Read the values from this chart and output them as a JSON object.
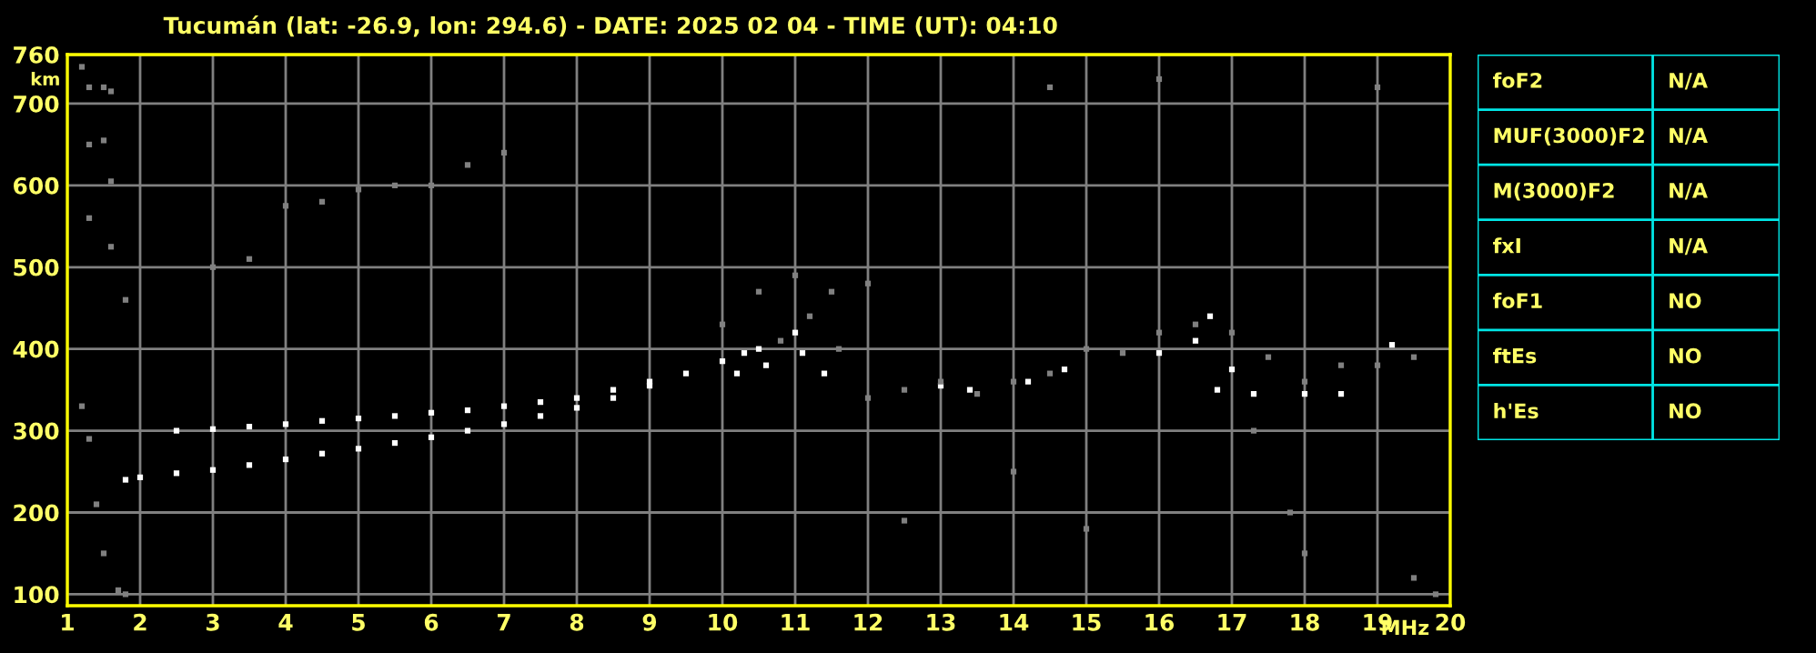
{
  "chart_data": [
    {
      "type": "scatter",
      "title": "Tucumán (lat: -26.9, lon: 294.6) - DATE: 2025 02 04 - TIME (UT): 04:10",
      "xlabel": "MHz",
      "ylabel": "km",
      "xlim": [
        1,
        20
      ],
      "xticks": [
        1,
        2,
        3,
        4,
        5,
        6,
        7,
        8,
        9,
        10,
        11,
        12,
        13,
        14,
        15,
        16,
        17,
        18,
        19,
        20
      ],
      "ylim": [
        86,
        760
      ],
      "yticks": [
        100,
        200,
        300,
        400,
        500,
        600,
        700,
        760
      ],
      "grid": true,
      "marker": "square",
      "series": [
        {
          "color": "#ffffff",
          "x": [
            1.8,
            2,
            2.5,
            3,
            3.5,
            4,
            4.5,
            5,
            5.5,
            6,
            6.5,
            7,
            7.5,
            8,
            8.5,
            9,
            9.5,
            10,
            10.3,
            2.5,
            3,
            3.5,
            4,
            4.5,
            5,
            5.5,
            6,
            6.5,
            7,
            7.5,
            8,
            8.5,
            9,
            10.5,
            11,
            10.2,
            10.6,
            11.1,
            11.4,
            13,
            13.4,
            14.2,
            14.7,
            16,
            16.5,
            16.7,
            16.8,
            17,
            17.3,
            18,
            18.5,
            19.2
          ],
          "values": [
            240,
            243,
            248,
            252,
            258,
            265,
            272,
            278,
            285,
            292,
            300,
            308,
            318,
            328,
            340,
            355,
            370,
            385,
            395,
            300,
            302,
            305,
            308,
            312,
            315,
            318,
            322,
            325,
            330,
            335,
            340,
            350,
            360,
            400,
            420,
            370,
            380,
            395,
            370,
            355,
            350,
            360,
            375,
            395,
            410,
            440,
            350,
            375,
            345,
            345,
            345,
            405
          ]
        },
        {
          "color": "#808080",
          "x": [
            3,
            3.5,
            4,
            4.5,
            5,
            5.5,
            6,
            6.5,
            7,
            1.2,
            1.3,
            1.5,
            1.6,
            1.3,
            1.5,
            1.6,
            1.3,
            1.6,
            1.8,
            1.2,
            1.3,
            1.4,
            1.5,
            1.7,
            1.8,
            10,
            10.5,
            11,
            11.5,
            11.2,
            10.8,
            11.6,
            12,
            12.5,
            13,
            13.5,
            14,
            14.5,
            15,
            15.5,
            16,
            16.5,
            17,
            17.5,
            18,
            18.5,
            19,
            19.5,
            12.5,
            14,
            15,
            17.8,
            18,
            19.5,
            19.8,
            16,
            14.5,
            19,
            17.3,
            12
          ],
          "values": [
            500,
            510,
            575,
            580,
            595,
            600,
            600,
            625,
            640,
            745,
            720,
            720,
            715,
            650,
            655,
            605,
            560,
            525,
            460,
            330,
            290,
            210,
            150,
            105,
            100,
            430,
            470,
            490,
            470,
            440,
            410,
            400,
            340,
            350,
            360,
            345,
            360,
            370,
            400,
            395,
            420,
            430,
            420,
            390,
            360,
            380,
            380,
            390,
            190,
            250,
            180,
            200,
            150,
            120,
            100,
            730,
            720,
            720,
            300,
            480
          ]
        }
      ]
    },
    {
      "type": "other",
      "annotations": [
        "foF2",
        "N/A",
        "MUF(3000)F2",
        "N/A",
        "M(3000)F2",
        "N/A",
        "fxI",
        "N/A",
        "foF1",
        "NO",
        "ftEs",
        "NO",
        "h'Es",
        "NO"
      ]
    }
  ]
}
